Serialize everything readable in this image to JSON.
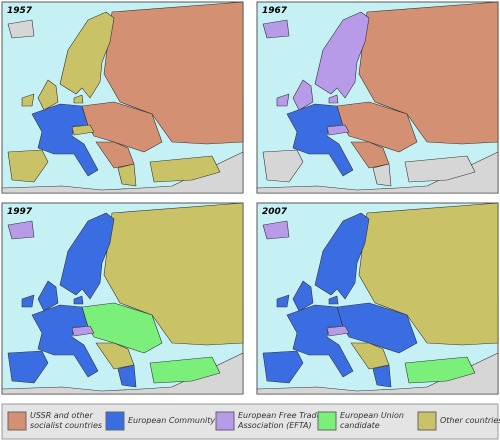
{
  "maps": [
    {
      "title": "1957"
    },
    {
      "title": "1967"
    },
    {
      "title": "1997"
    },
    {
      "title": "2007"
    }
  ],
  "legend": {
    "items": [
      {
        "label_lines": [
          "USSR and other",
          "socialist countries"
        ]
      },
      {
        "label_lines": [
          "European Community"
        ]
      },
      {
        "label_lines": [
          "European Free Trade",
          "Association (EFTA)"
        ]
      },
      {
        "label_lines": [
          "European Union",
          "candidate"
        ]
      },
      {
        "label_lines": [
          "Other countries"
        ]
      }
    ]
  }
}
